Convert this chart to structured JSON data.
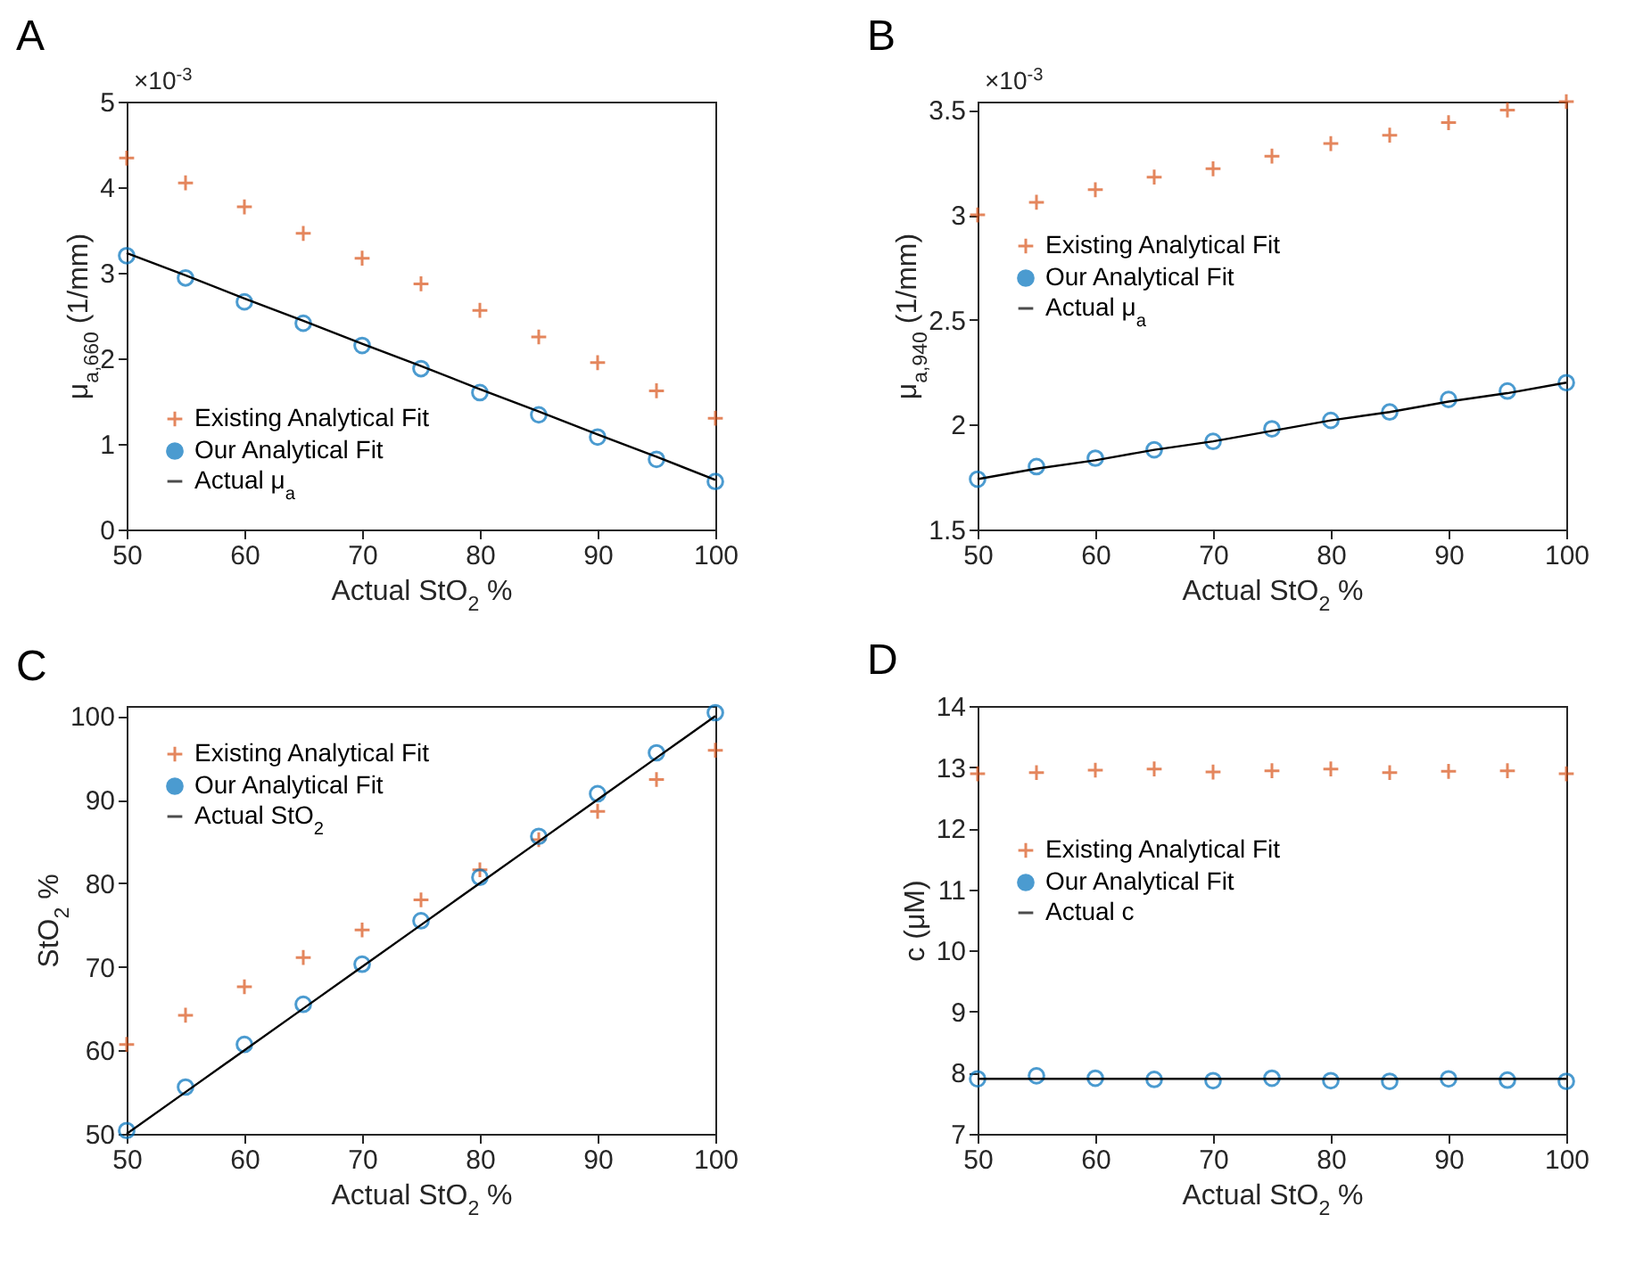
{
  "chart_data": [
    {
      "type": "scatter",
      "title": "A",
      "xlabel": "Actual StO$_{2}$ %",
      "ylabel": "μ$_{a,660}$ (1/mm)",
      "annotations": [
        "×10$^{-3}$"
      ],
      "x": [
        50,
        55,
        60,
        65,
        70,
        75,
        80,
        85,
        90,
        95,
        100
      ],
      "xlim": [
        50,
        100
      ],
      "xticks": [
        50,
        60,
        70,
        80,
        90,
        100
      ],
      "ylim": [
        0,
        5
      ],
      "yticks": [
        0,
        1,
        2,
        3,
        4,
        5
      ],
      "grid": false,
      "legend": "bottom left",
      "series": [
        {
          "name": "Existing Analytical Fit",
          "color": "#d95319",
          "marker": "cross",
          "values": [
            4.34,
            4.05,
            3.77,
            3.46,
            3.17,
            2.87,
            2.56,
            2.25,
            1.95,
            1.62,
            1.3
          ]
        },
        {
          "name": "Our Analytical Fit",
          "color": "#0072bd",
          "marker": "circle",
          "values": [
            3.2,
            2.94,
            2.66,
            2.41,
            2.15,
            1.88,
            1.6,
            1.34,
            1.08,
            0.82,
            0.56
          ]
        },
        {
          "name": "Actual μ$_{a}$",
          "color": "#000000",
          "type": "line",
          "values": [
            3.23,
            2.97,
            2.7,
            2.44,
            2.17,
            1.91,
            1.64,
            1.38,
            1.11,
            0.85,
            0.58
          ]
        }
      ]
    },
    {
      "type": "scatter",
      "title": "B",
      "xlabel": "Actual StO$_{2}$ %",
      "ylabel": "μ$_{a,940}$ (1/mm)",
      "annotations": [
        "×10$^{-3}$"
      ],
      "x": [
        50,
        55,
        60,
        65,
        70,
        75,
        80,
        85,
        90,
        95,
        100
      ],
      "xlim": [
        50,
        100
      ],
      "xticks": [
        50,
        60,
        70,
        80,
        90,
        100
      ],
      "ylim": [
        1.5,
        3.54
      ],
      "yticks": [
        1.5,
        2,
        2.5,
        3,
        3.5
      ],
      "grid": false,
      "legend": "left",
      "series": [
        {
          "name": "Existing Analytical Fit",
          "color": "#d95319",
          "marker": "cross",
          "values": [
            3.0,
            3.06,
            3.12,
            3.18,
            3.22,
            3.28,
            3.34,
            3.38,
            3.44,
            3.5,
            3.54
          ]
        },
        {
          "name": "Our Analytical Fit",
          "color": "#0072bd",
          "marker": "circle",
          "values": [
            1.74,
            1.8,
            1.84,
            1.88,
            1.92,
            1.98,
            2.02,
            2.06,
            2.12,
            2.16,
            2.2
          ]
        },
        {
          "name": "Actual μ$_{a}$",
          "color": "#000000",
          "type": "line",
          "values": [
            1.74,
            1.79,
            1.83,
            1.88,
            1.92,
            1.97,
            2.02,
            2.06,
            2.11,
            2.15,
            2.2
          ]
        }
      ]
    },
    {
      "type": "scatter",
      "title": "C",
      "xlabel": "Actual StO$_{2}$ %",
      "ylabel": "StO$_{2}$ %",
      "x": [
        50,
        55,
        60,
        65,
        70,
        75,
        80,
        85,
        90,
        95,
        100
      ],
      "xlim": [
        50,
        100
      ],
      "xticks": [
        50,
        60,
        70,
        80,
        90,
        100
      ],
      "ylim": [
        50,
        101.2
      ],
      "yticks": [
        50,
        60,
        70,
        80,
        90,
        100
      ],
      "grid": false,
      "legend": "top left",
      "series": [
        {
          "name": "Existing Analytical Fit",
          "color": "#d95319",
          "marker": "cross",
          "values": [
            60.7,
            64.2,
            67.6,
            71.1,
            74.4,
            78.0,
            81.6,
            85.2,
            88.6,
            92.4,
            95.9
          ]
        },
        {
          "name": "Our Analytical Fit",
          "color": "#0072bd",
          "marker": "circle",
          "values": [
            50.4,
            55.6,
            60.7,
            65.5,
            70.3,
            75.5,
            80.7,
            85.6,
            90.7,
            95.6,
            100.4
          ]
        },
        {
          "name": "Actual StO$_{2}$",
          "color": "#000000",
          "type": "line",
          "values": [
            50,
            55,
            60,
            65,
            70,
            75,
            80,
            85,
            90,
            95,
            100
          ]
        }
      ]
    },
    {
      "type": "scatter",
      "title": "D",
      "xlabel": "Actual StO$_{2}$ %",
      "ylabel": "c (μM)",
      "x": [
        50,
        55,
        60,
        65,
        70,
        75,
        80,
        85,
        90,
        95,
        100
      ],
      "xlim": [
        50,
        100
      ],
      "xticks": [
        50,
        60,
        70,
        80,
        90,
        100
      ],
      "ylim": [
        7,
        14
      ],
      "yticks": [
        7,
        8,
        9,
        10,
        11,
        12,
        13,
        14
      ],
      "grid": false,
      "legend": "left",
      "series": [
        {
          "name": "Existing Analytical Fit",
          "color": "#d95319",
          "marker": "cross",
          "values": [
            12.89,
            12.91,
            12.95,
            12.97,
            12.92,
            12.94,
            12.97,
            12.91,
            12.93,
            12.94,
            12.89
          ]
        },
        {
          "name": "Our Analytical Fit",
          "color": "#0072bd",
          "marker": "circle",
          "values": [
            7.9,
            7.95,
            7.91,
            7.89,
            7.87,
            7.91,
            7.87,
            7.86,
            7.9,
            7.88,
            7.86
          ]
        },
        {
          "name": "Actual c",
          "color": "#000000",
          "type": "line",
          "values": [
            7.9,
            7.9,
            7.9,
            7.9,
            7.9,
            7.9,
            7.9,
            7.9,
            7.9,
            7.9,
            7.9
          ]
        }
      ]
    }
  ]
}
